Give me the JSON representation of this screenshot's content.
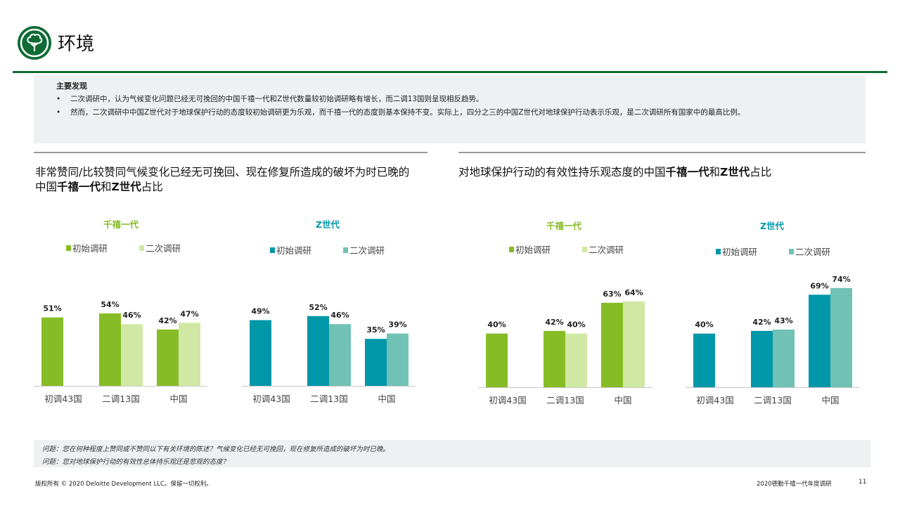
{
  "header": {
    "title": "环境"
  },
  "findings": {
    "heading": "主要发现",
    "items": [
      "二次调研中，认为气候变化问题已经无可挽回的中国千禧一代和Z世代数量较初始调研略有增长，而二调13国则呈现相反趋势。",
      "然而，二次调研中中国Z世代对于地球保护行动的态度较初始调研更为乐观，而千禧一代的态度则基本保持不变。实际上，四分之三的中国Z世代对地球保护行动表示乐观，是二次调研所有国家中的最高比例。"
    ]
  },
  "panels": [
    {
      "title_line1": "非常赞同/比较赞同气候变化已经无可挽回、现在修复所造成的破坏为时已晚的",
      "title_line2_pre": "中国",
      "title_bold1": "千禧一代",
      "title_mid": "和",
      "title_bold2": "Z世代",
      "title_post": "占比"
    },
    {
      "title_line1": "对地球保护行动的有效性持乐观态度的中国",
      "title_line2_pre": "",
      "title_bold1": "千禧一代",
      "title_mid": "和",
      "title_bold2": "Z世代",
      "title_post": "占比"
    }
  ],
  "colors": {
    "brand_green": "#0e6b35",
    "millennial_initial": "#86bc25",
    "millennial_second": "#d0e8a4",
    "genz_initial": "#0097a9",
    "genz_second": "#6fc2b4",
    "millennial_title": "#86bc25",
    "genz_title": "#0097a9"
  },
  "icons": {
    "header": "tree-icon"
  },
  "chart_data": [
    {
      "type": "bar",
      "title": "千禧一代",
      "categories": [
        "初调43国",
        "二调13国",
        "中国"
      ],
      "series": [
        {
          "name": "初始调研",
          "values": [
            51,
            54,
            42
          ]
        },
        {
          "name": "二次调研",
          "values": [
            null,
            46,
            47
          ]
        }
      ],
      "value_suffix": "%",
      "legend": "top"
    },
    {
      "type": "bar",
      "title": "Z世代",
      "categories": [
        "初调43国",
        "二调13国",
        "中国"
      ],
      "series": [
        {
          "name": "初始调研",
          "values": [
            49,
            52,
            35
          ]
        },
        {
          "name": "二次调研",
          "values": [
            null,
            46,
            39
          ]
        }
      ],
      "value_suffix": "%",
      "legend": "top"
    },
    {
      "type": "bar",
      "title": "千禧一代",
      "categories": [
        "初调43国",
        "二调13国",
        "中国"
      ],
      "series": [
        {
          "name": "初始调研",
          "values": [
            40,
            42,
            63
          ]
        },
        {
          "name": "二次调研",
          "values": [
            null,
            40,
            64
          ]
        }
      ],
      "value_suffix": "%",
      "legend": "top"
    },
    {
      "type": "bar",
      "title": "Z世代",
      "categories": [
        "初调43国",
        "二调13国",
        "中国"
      ],
      "series": [
        {
          "name": "初始调研",
          "values": [
            40,
            42,
            69
          ]
        },
        {
          "name": "二次调研",
          "values": [
            null,
            43,
            74
          ]
        }
      ],
      "value_suffix": "%",
      "legend": "top"
    }
  ],
  "questions": [
    "问题：您在何种程度上赞同或不赞同以下有关环境的陈述？气候变化已经无可挽回，现在修复所造成的破坏为时已晚。",
    "问题：您对地球保护行动的有效性总体持乐观还是悲观的态度？"
  ],
  "footer": {
    "copyright": "版权所有 © 2020 Deloitte Development LLC。保留一切权利。",
    "report": "2020德勤千禧一代年度调研",
    "page": "11"
  }
}
